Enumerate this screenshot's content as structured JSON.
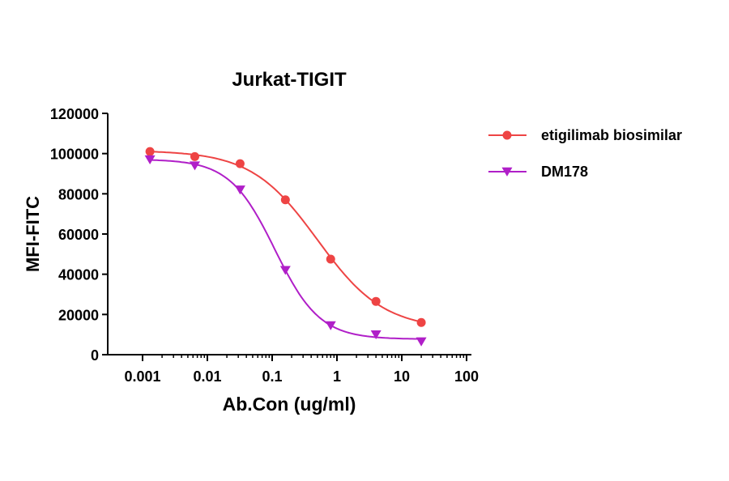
{
  "chart_data": {
    "type": "scatter",
    "title": "Jurkat-TIGIT",
    "xlabel": "Ab.Con (ug/ml)",
    "ylabel": "MFI-FITC",
    "xscale": "log",
    "xlim": [
      0.001,
      100
    ],
    "ylim": [
      0,
      120000
    ],
    "xticks": [
      "0.001",
      "0.01",
      "0.1",
      "1",
      "10",
      "100"
    ],
    "yticks": [
      "0",
      "20000",
      "40000",
      "60000",
      "80000",
      "100000",
      "120000"
    ],
    "grid": false,
    "legend_position": "right",
    "series": [
      {
        "name": "etigilimab biosimilar",
        "color": "#ee4444",
        "marker": "circle",
        "x": [
          0.0013,
          0.0064,
          0.032,
          0.16,
          0.8,
          4,
          20
        ],
        "y": [
          101000,
          98500,
          95000,
          77000,
          47500,
          26500,
          16000
        ]
      },
      {
        "name": "DM178",
        "color": "#b01fc8",
        "marker": "triangle-down",
        "x": [
          0.0013,
          0.0064,
          0.032,
          0.16,
          0.8,
          4,
          20
        ],
        "y": [
          97000,
          94000,
          82000,
          42000,
          14500,
          10000,
          6500
        ]
      }
    ]
  }
}
